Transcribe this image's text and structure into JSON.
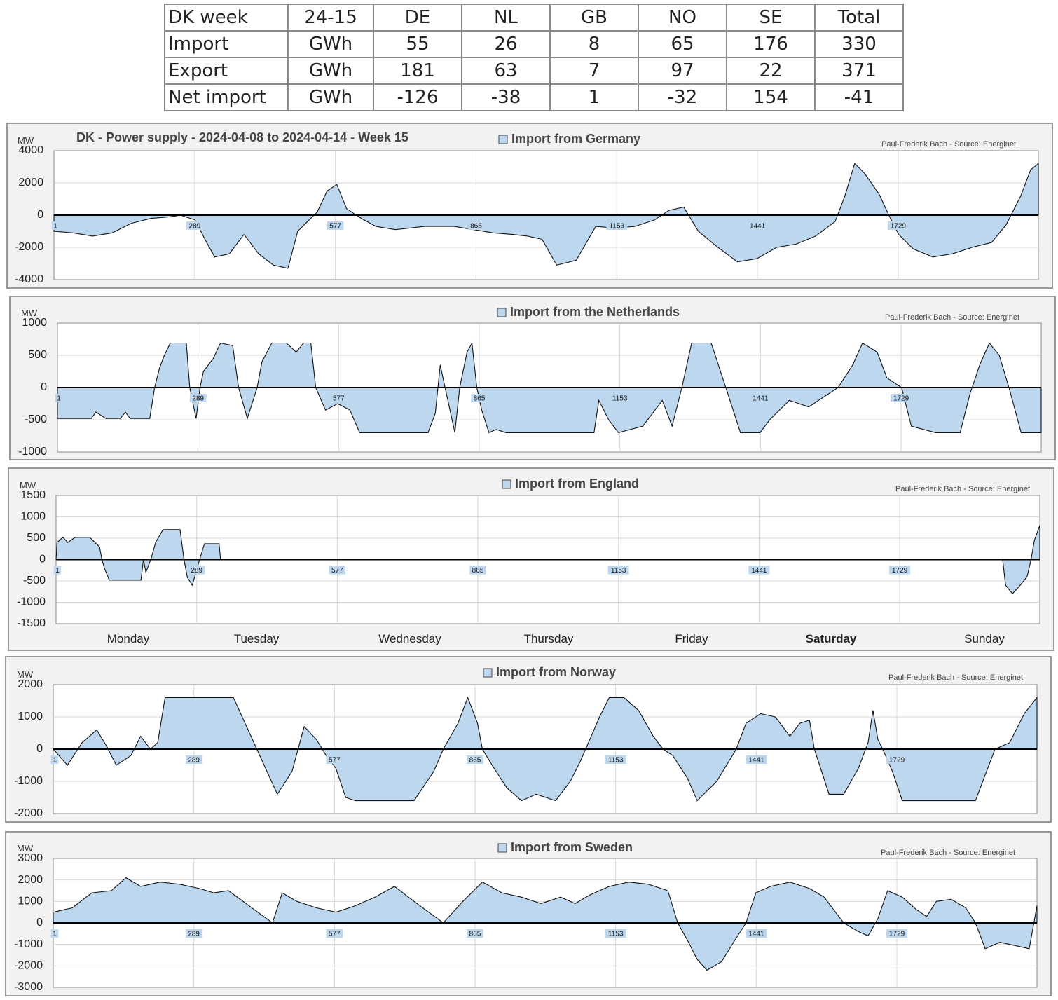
{
  "summary_table": {
    "header": [
      "DK week",
      "24-15",
      "DE",
      "NL",
      "GB",
      "NO",
      "SE",
      "Total"
    ],
    "rows": [
      [
        "Import",
        "GWh",
        "55",
        "26",
        "8",
        "65",
        "176",
        "330"
      ],
      [
        "Export",
        "GWh",
        "181",
        "63",
        "7",
        "97",
        "22",
        "371"
      ],
      [
        "Net import",
        "GWh",
        "-126",
        "-38",
        "1",
        "-32",
        "154",
        "-41"
      ]
    ]
  },
  "days": [
    "Monday",
    "Tuesday",
    "Wednesday",
    "Thursday",
    "Friday",
    "Saturday",
    "Sunday"
  ],
  "colors": {
    "area_fill": "#bdd7ee",
    "line": "#111111",
    "panel_bg": "#f2f2f2"
  },
  "chart_data": [
    {
      "type": "area",
      "title": "DK - Power supply - 2024-04-08 to 2024-04-14 - Week 15",
      "legend": "Import from Germany",
      "source": "Paul-Frederik Bach - Source: Energinet",
      "ylabel": "MW",
      "ylim": [
        -4000,
        4000
      ],
      "yticks": [
        4000,
        2000,
        0,
        -2000,
        -4000
      ],
      "xlim": [
        1,
        2016
      ],
      "xticks": [
        1,
        289,
        577,
        865,
        1153,
        1441,
        1729
      ],
      "points": [
        [
          1,
          -1000
        ],
        [
          40,
          -1100
        ],
        [
          80,
          -1300
        ],
        [
          120,
          -1100
        ],
        [
          160,
          -500
        ],
        [
          200,
          -200
        ],
        [
          240,
          -100
        ],
        [
          260,
          0
        ],
        [
          290,
          -300
        ],
        [
          310,
          -1500
        ],
        [
          330,
          -2600
        ],
        [
          360,
          -2400
        ],
        [
          390,
          -1200
        ],
        [
          420,
          -2400
        ],
        [
          450,
          -3100
        ],
        [
          480,
          -3300
        ],
        [
          500,
          -1000
        ],
        [
          520,
          -400
        ],
        [
          540,
          200
        ],
        [
          560,
          1500
        ],
        [
          580,
          1900
        ],
        [
          600,
          400
        ],
        [
          630,
          -200
        ],
        [
          660,
          -700
        ],
        [
          700,
          -900
        ],
        [
          760,
          -700
        ],
        [
          820,
          -700
        ],
        [
          860,
          -900
        ],
        [
          900,
          -1100
        ],
        [
          940,
          -1200
        ],
        [
          970,
          -1300
        ],
        [
          1000,
          -1500
        ],
        [
          1030,
          -3100
        ],
        [
          1070,
          -2800
        ],
        [
          1110,
          -700
        ],
        [
          1150,
          -800
        ],
        [
          1190,
          -700
        ],
        [
          1230,
          -300
        ],
        [
          1260,
          300
        ],
        [
          1290,
          500
        ],
        [
          1320,
          -1000
        ],
        [
          1360,
          -2000
        ],
        [
          1400,
          -2900
        ],
        [
          1440,
          -2700
        ],
        [
          1480,
          -2000
        ],
        [
          1520,
          -1800
        ],
        [
          1560,
          -1300
        ],
        [
          1600,
          -400
        ],
        [
          1620,
          1200
        ],
        [
          1640,
          3200
        ],
        [
          1660,
          2600
        ],
        [
          1690,
          1300
        ],
        [
          1710,
          0
        ],
        [
          1730,
          -1200
        ],
        [
          1760,
          -2100
        ],
        [
          1800,
          -2600
        ],
        [
          1840,
          -2400
        ],
        [
          1880,
          -2000
        ],
        [
          1920,
          -1700
        ],
        [
          1950,
          -600
        ],
        [
          1980,
          1200
        ],
        [
          2000,
          2800
        ],
        [
          2016,
          3200
        ]
      ]
    },
    {
      "type": "area",
      "legend": "Import from the Netherlands",
      "source": "Paul-Frederik Bach - Source: Energinet",
      "ylabel": "MW",
      "ylim": [
        -1000,
        1000
      ],
      "yticks": [
        1000,
        500,
        0,
        -500,
        -1000
      ],
      "xlim": [
        1,
        2016
      ],
      "xticks": [
        1,
        289,
        577,
        865,
        1153,
        1441,
        1729
      ],
      "points": [
        [
          1,
          -480
        ],
        [
          70,
          -480
        ],
        [
          80,
          -380
        ],
        [
          100,
          -480
        ],
        [
          130,
          -480
        ],
        [
          140,
          -380
        ],
        [
          150,
          -480
        ],
        [
          190,
          -480
        ],
        [
          200,
          0
        ],
        [
          210,
          300
        ],
        [
          220,
          500
        ],
        [
          232,
          690
        ],
        [
          265,
          690
        ],
        [
          272,
          0
        ],
        [
          285,
          -480
        ],
        [
          293,
          0
        ],
        [
          300,
          250
        ],
        [
          320,
          450
        ],
        [
          335,
          690
        ],
        [
          360,
          650
        ],
        [
          372,
          0
        ],
        [
          390,
          -480
        ],
        [
          410,
          0
        ],
        [
          420,
          400
        ],
        [
          440,
          690
        ],
        [
          470,
          690
        ],
        [
          490,
          550
        ],
        [
          505,
          690
        ],
        [
          520,
          690
        ],
        [
          530,
          0
        ],
        [
          550,
          -350
        ],
        [
          575,
          -250
        ],
        [
          600,
          -350
        ],
        [
          620,
          -700
        ],
        [
          680,
          -700
        ],
        [
          720,
          -700
        ],
        [
          760,
          -700
        ],
        [
          775,
          -400
        ],
        [
          785,
          350
        ],
        [
          795,
          0
        ],
        [
          815,
          -700
        ],
        [
          825,
          0
        ],
        [
          840,
          550
        ],
        [
          850,
          690
        ],
        [
          860,
          0
        ],
        [
          870,
          -350
        ],
        [
          885,
          -700
        ],
        [
          900,
          -650
        ],
        [
          920,
          -700
        ],
        [
          970,
          -700
        ],
        [
          1100,
          -700
        ],
        [
          1110,
          -200
        ],
        [
          1130,
          -500
        ],
        [
          1150,
          -700
        ],
        [
          1200,
          -600
        ],
        [
          1240,
          -200
        ],
        [
          1260,
          -600
        ],
        [
          1280,
          0
        ],
        [
          1300,
          690
        ],
        [
          1340,
          690
        ],
        [
          1370,
          0
        ],
        [
          1400,
          -700
        ],
        [
          1440,
          -700
        ],
        [
          1460,
          -500
        ],
        [
          1500,
          -200
        ],
        [
          1540,
          -300
        ],
        [
          1570,
          -150
        ],
        [
          1600,
          0
        ],
        [
          1630,
          350
        ],
        [
          1650,
          690
        ],
        [
          1680,
          550
        ],
        [
          1700,
          150
        ],
        [
          1730,
          0
        ],
        [
          1750,
          -600
        ],
        [
          1800,
          -700
        ],
        [
          1850,
          -700
        ],
        [
          1870,
          -100
        ],
        [
          1890,
          350
        ],
        [
          1910,
          690
        ],
        [
          1930,
          500
        ],
        [
          1950,
          0
        ],
        [
          1975,
          -700
        ],
        [
          2016,
          -700
        ]
      ]
    },
    {
      "type": "area",
      "legend": "Import from England",
      "source": "Paul-Frederik Bach - Source: Energinet",
      "ylabel": "MW",
      "ylim": [
        -1500,
        1500
      ],
      "yticks": [
        1500,
        1000,
        500,
        0,
        -500,
        -1000,
        -1500
      ],
      "xlim": [
        1,
        2016
      ],
      "xticks": [
        1,
        289,
        577,
        865,
        1153,
        1441,
        1729
      ],
      "points": [
        [
          1,
          0
        ],
        [
          3,
          400
        ],
        [
          15,
          520
        ],
        [
          25,
          400
        ],
        [
          40,
          520
        ],
        [
          70,
          520
        ],
        [
          90,
          300
        ],
        [
          95,
          0
        ],
        [
          100,
          -200
        ],
        [
          110,
          -480
        ],
        [
          175,
          -480
        ],
        [
          180,
          0
        ],
        [
          185,
          -300
        ],
        [
          195,
          0
        ],
        [
          205,
          400
        ],
        [
          220,
          700
        ],
        [
          255,
          700
        ],
        [
          263,
          0
        ],
        [
          270,
          -420
        ],
        [
          280,
          -600
        ],
        [
          295,
          0
        ],
        [
          305,
          370
        ],
        [
          335,
          370
        ],
        [
          338,
          0
        ],
        [
          1940,
          0
        ],
        [
          1946,
          -600
        ],
        [
          1960,
          -800
        ],
        [
          1976,
          -600
        ],
        [
          1990,
          -400
        ],
        [
          1998,
          0
        ],
        [
          2005,
          450
        ],
        [
          2016,
          800
        ]
      ]
    },
    {
      "type": "area",
      "legend": "Import from Norway",
      "source": "Paul-Frederik Bach - Source: Energinet",
      "ylabel": "MW",
      "ylim": [
        -2000,
        2000
      ],
      "yticks": [
        2000,
        1000,
        0,
        -1000,
        -2000
      ],
      "xlim": [
        1,
        2016
      ],
      "xticks": [
        1,
        289,
        577,
        865,
        1153,
        1441,
        1729
      ],
      "points": [
        [
          1,
          0
        ],
        [
          30,
          -500
        ],
        [
          60,
          200
        ],
        [
          90,
          600
        ],
        [
          110,
          100
        ],
        [
          130,
          -500
        ],
        [
          160,
          -200
        ],
        [
          180,
          400
        ],
        [
          200,
          0
        ],
        [
          215,
          200
        ],
        [
          230,
          1600
        ],
        [
          370,
          1600
        ],
        [
          400,
          600
        ],
        [
          430,
          -400
        ],
        [
          460,
          -1400
        ],
        [
          490,
          -700
        ],
        [
          515,
          700
        ],
        [
          540,
          300
        ],
        [
          560,
          -200
        ],
        [
          580,
          -600
        ],
        [
          600,
          -1500
        ],
        [
          620,
          -1600
        ],
        [
          660,
          -1600
        ],
        [
          740,
          -1600
        ],
        [
          780,
          -700
        ],
        [
          800,
          0
        ],
        [
          830,
          800
        ],
        [
          850,
          1600
        ],
        [
          870,
          800
        ],
        [
          880,
          0
        ],
        [
          900,
          -500
        ],
        [
          930,
          -1200
        ],
        [
          960,
          -1600
        ],
        [
          990,
          -1400
        ],
        [
          1030,
          -1600
        ],
        [
          1060,
          -1000
        ],
        [
          1080,
          -400
        ],
        [
          1100,
          300
        ],
        [
          1120,
          1000
        ],
        [
          1140,
          1600
        ],
        [
          1170,
          1600
        ],
        [
          1200,
          1200
        ],
        [
          1230,
          400
        ],
        [
          1250,
          0
        ],
        [
          1270,
          -200
        ],
        [
          1300,
          -900
        ],
        [
          1320,
          -1600
        ],
        [
          1360,
          -1000
        ],
        [
          1380,
          -500
        ],
        [
          1400,
          0
        ],
        [
          1420,
          800
        ],
        [
          1450,
          1100
        ],
        [
          1480,
          1000
        ],
        [
          1510,
          400
        ],
        [
          1530,
          800
        ],
        [
          1550,
          900
        ],
        [
          1560,
          0
        ],
        [
          1590,
          -1400
        ],
        [
          1620,
          -1400
        ],
        [
          1650,
          -600
        ],
        [
          1670,
          200
        ],
        [
          1680,
          1200
        ],
        [
          1690,
          300
        ],
        [
          1700,
          0
        ],
        [
          1720,
          -700
        ],
        [
          1740,
          -1600
        ],
        [
          1790,
          -1600
        ],
        [
          1830,
          -1600
        ],
        [
          1870,
          -1600
        ],
        [
          1890,
          -1600
        ],
        [
          1910,
          -800
        ],
        [
          1930,
          0
        ],
        [
          1960,
          200
        ],
        [
          1990,
          1100
        ],
        [
          2016,
          1600
        ]
      ]
    },
    {
      "type": "area",
      "legend": "Import from Sweden",
      "source": "Paul-Frederik Bach - Source: Energinet",
      "ylabel": "MW",
      "ylim": [
        -3000,
        3000
      ],
      "yticks": [
        3000,
        2000,
        1000,
        0,
        -1000,
        -2000,
        -3000
      ],
      "xlim": [
        1,
        2016
      ],
      "xticks": [
        1,
        289,
        577,
        865,
        1153,
        1441,
        1729
      ],
      "points": [
        [
          1,
          500
        ],
        [
          40,
          700
        ],
        [
          80,
          1400
        ],
        [
          120,
          1500
        ],
        [
          150,
          2100
        ],
        [
          180,
          1700
        ],
        [
          220,
          1900
        ],
        [
          260,
          1800
        ],
        [
          300,
          1600
        ],
        [
          330,
          1400
        ],
        [
          360,
          1500
        ],
        [
          390,
          1000
        ],
        [
          420,
          500
        ],
        [
          450,
          0
        ],
        [
          470,
          1400
        ],
        [
          500,
          1000
        ],
        [
          540,
          700
        ],
        [
          580,
          500
        ],
        [
          620,
          800
        ],
        [
          660,
          1200
        ],
        [
          700,
          1700
        ],
        [
          740,
          1000
        ],
        [
          770,
          500
        ],
        [
          800,
          0
        ],
        [
          840,
          1000
        ],
        [
          880,
          1900
        ],
        [
          920,
          1400
        ],
        [
          960,
          1200
        ],
        [
          1000,
          900
        ],
        [
          1040,
          1200
        ],
        [
          1070,
          900
        ],
        [
          1100,
          1300
        ],
        [
          1140,
          1700
        ],
        [
          1180,
          1900
        ],
        [
          1220,
          1800
        ],
        [
          1260,
          1500
        ],
        [
          1280,
          0
        ],
        [
          1300,
          -800
        ],
        [
          1320,
          -1700
        ],
        [
          1340,
          -2200
        ],
        [
          1370,
          -1800
        ],
        [
          1400,
          -700
        ],
        [
          1420,
          0
        ],
        [
          1440,
          1400
        ],
        [
          1470,
          1700
        ],
        [
          1510,
          1900
        ],
        [
          1550,
          1600
        ],
        [
          1580,
          1200
        ],
        [
          1600,
          600
        ],
        [
          1620,
          0
        ],
        [
          1650,
          -400
        ],
        [
          1670,
          -600
        ],
        [
          1690,
          200
        ],
        [
          1710,
          1500
        ],
        [
          1740,
          1200
        ],
        [
          1770,
          600
        ],
        [
          1790,
          300
        ],
        [
          1810,
          1000
        ],
        [
          1840,
          1100
        ],
        [
          1870,
          700
        ],
        [
          1890,
          0
        ],
        [
          1910,
          -1200
        ],
        [
          1940,
          -900
        ],
        [
          1980,
          -1100
        ],
        [
          2000,
          -1200
        ],
        [
          2016,
          800
        ]
      ]
    }
  ]
}
